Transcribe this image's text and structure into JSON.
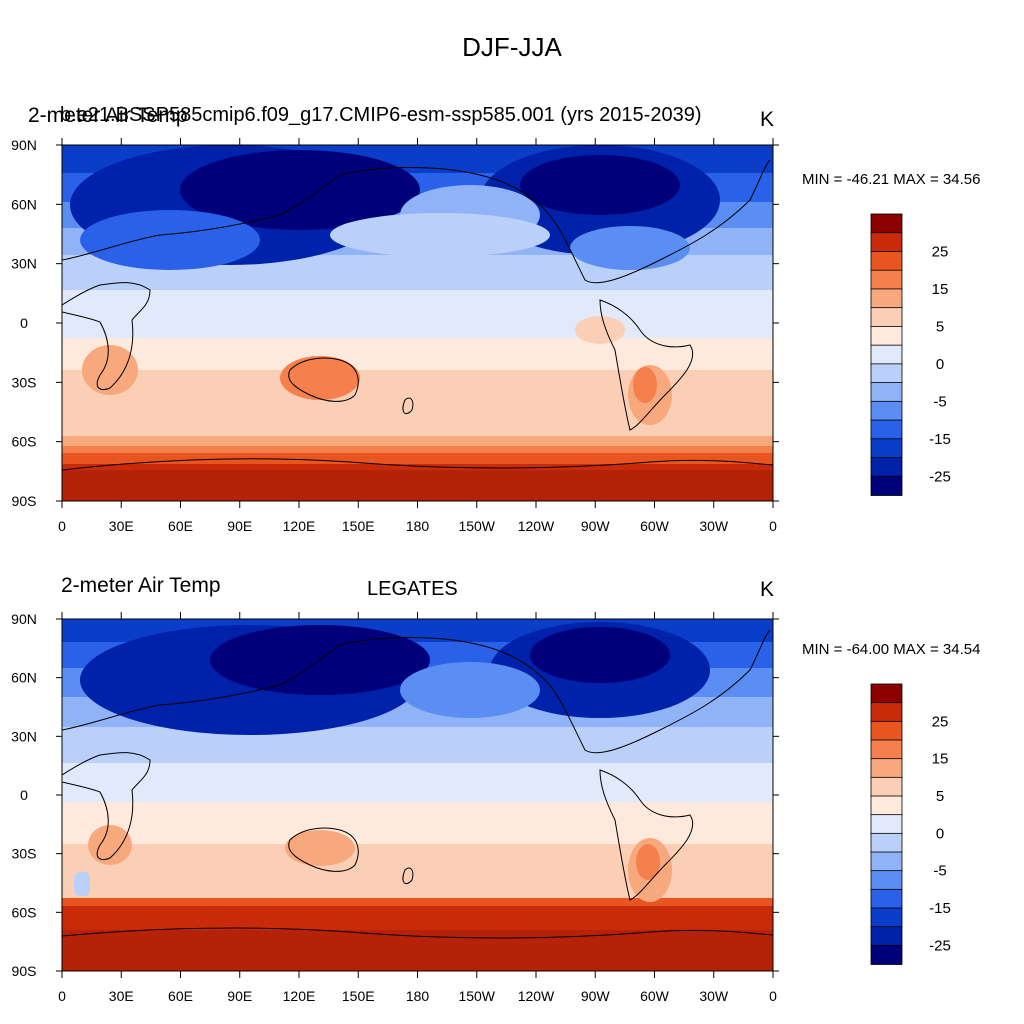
{
  "title": "DJF-JJA",
  "colors": [
    "#00007a",
    "#0022aa",
    "#0a3ec8",
    "#2962e8",
    "#5a8ef2",
    "#8fb3f6",
    "#bad0f8",
    "#e0eafb",
    "#fdeadd",
    "#fbcfb5",
    "#f8a87d",
    "#f5804c",
    "#e85520",
    "#c82a0a",
    "#8c0000"
  ],
  "colorbar_labels": [
    "25",
    "15",
    "5",
    "0",
    "-5",
    "-15",
    "-25"
  ],
  "lat_labels": [
    "90N",
    "60N",
    "30N",
    "0",
    "30S",
    "60S",
    "90S"
  ],
  "lon_labels": [
    "0",
    "30E",
    "60E",
    "90E",
    "120E",
    "150E",
    "180",
    "150W",
    "120W",
    "90W",
    "60W",
    "30W",
    "0"
  ],
  "panels": [
    {
      "left_title": "2-meter Air Temp",
      "center_title": "b.e21.BSSP585cmip6.f09_g17.CMIP6-esm-ssp585.001 (yrs 2015-2039)",
      "right_title": "K",
      "stats": "MIN = -46.21 MAX =  34.56",
      "min": -46.21,
      "max": 34.56
    },
    {
      "left_title": "2-meter Air Temp",
      "center_title": "LEGATES",
      "right_title": "K",
      "stats": "MIN = -64.00 MAX =  34.54",
      "min": -64.0,
      "max": 34.54
    }
  ]
}
